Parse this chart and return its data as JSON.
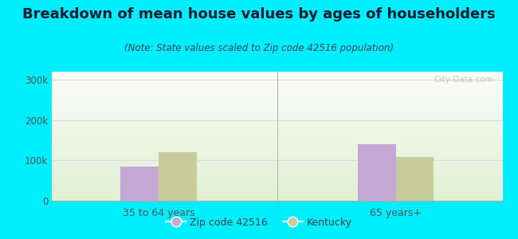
{
  "title": "Breakdown of mean house values by ages of householders",
  "subtitle": "(Note: State values scaled to Zip code 42516 population)",
  "categories": [
    "35 to 64 years",
    "65 years+"
  ],
  "zip_values": [
    85000,
    140000
  ],
  "ky_values": [
    120000,
    108000
  ],
  "zip_color": "#c4a8d4",
  "ky_color": "#c8cc9a",
  "background_outer": "#00eeff",
  "ylim": [
    0,
    320000
  ],
  "yticks": [
    0,
    100000,
    200000,
    300000
  ],
  "ytick_labels": [
    "0",
    "100k",
    "200k",
    "300k"
  ],
  "bar_width": 0.32,
  "title_fontsize": 13,
  "subtitle_fontsize": 8.5,
  "legend_labels": [
    "Zip code 42516",
    "Kentucky"
  ],
  "watermark": "City-Data.com"
}
